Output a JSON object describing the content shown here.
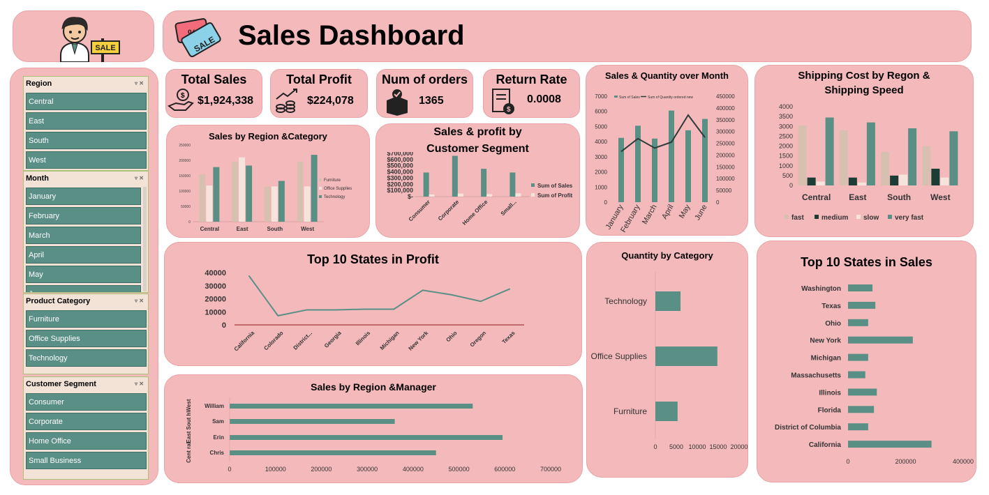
{
  "header": {
    "title": "Sales Dashboard",
    "logo_text": "SALE",
    "tag_text": "SALE"
  },
  "kpis": [
    {
      "title": "Total Sales",
      "value": "$1,924,338",
      "icon": "money-hand-icon"
    },
    {
      "title": "Total Profit",
      "value": "$224,078",
      "icon": "coins-growth-icon"
    },
    {
      "title": "Num of orders",
      "value": "1365",
      "icon": "box-icon"
    },
    {
      "title": "Return Rate",
      "value": "0.0008",
      "icon": "invoice-icon"
    }
  ],
  "slicers": {
    "region": {
      "title": "Region",
      "items": [
        "Central",
        "East",
        "South",
        "West"
      ]
    },
    "month": {
      "title": "Month",
      "items": [
        "January",
        "February",
        "March",
        "April",
        "May",
        "June"
      ]
    },
    "category": {
      "title": "Product Category",
      "items": [
        "Furniture",
        "Office Supplies",
        "Technology"
      ]
    },
    "segment": {
      "title": "Customer Segment",
      "items": [
        "Consumer",
        "Corporate",
        "Home Office",
        "Small Business"
      ]
    }
  },
  "colors": {
    "panel": "#f4b9bb",
    "teal": "#5a8f85",
    "beige": "#d8c0b0",
    "cream": "#f6e3dc",
    "dark": "#1c3d35",
    "line": "#2d3b38"
  },
  "charts": {
    "region_category": {
      "title": "Sales by Region &Category",
      "type": "bar",
      "categories": [
        "Central",
        "East",
        "South",
        "West"
      ],
      "series": [
        {
          "name": "Furniture",
          "values": [
            155000,
            195000,
            115000,
            195000
          ]
        },
        {
          "name": "Office Supplies",
          "values": [
            118000,
            210000,
            115000,
            115000
          ]
        },
        {
          "name": "Technology",
          "values": [
            178000,
            183000,
            133000,
            218000
          ]
        }
      ],
      "yticks": [
        "0",
        "50000",
        "100000",
        "150000",
        "200000",
        "250000"
      ],
      "ylim": [
        0,
        250000
      ]
    },
    "segment": {
      "title": "Sales & profit by Customer Segment",
      "type": "bar",
      "categories": [
        "Consumer",
        "Corporate",
        "Home Office",
        "Small..."
      ],
      "series": [
        {
          "name": "Sum of Sales",
          "values": [
            390000,
            660000,
            450000,
            390000
          ]
        },
        {
          "name": "Sum of Profit",
          "values": [
            35000,
            50000,
            40000,
            55000
          ]
        }
      ],
      "yticks": [
        "$-",
        "$100,000",
        "$200,000",
        "$300,000",
        "$400,000",
        "$500,000",
        "$600,000",
        "$700,000"
      ],
      "ylim": [
        0,
        700000
      ]
    },
    "month": {
      "title": "Sales & Quantity over Month",
      "type": "bar",
      "categories": [
        "January",
        "February",
        "March",
        "April",
        "May",
        "June"
      ],
      "series": [
        {
          "name": "Sum of Sales",
          "values": [
            4250,
            5050,
            4200,
            6050,
            4750,
            5500
          ]
        },
        {
          "name": "Sum of Quantity ordered new",
          "values": [
            215000,
            270000,
            230000,
            255000,
            370000,
            275000
          ]
        }
      ],
      "yticks_left": [
        "0",
        "1000",
        "2000",
        "3000",
        "4000",
        "5000",
        "6000",
        "7000"
      ],
      "yticks_right": [
        "0",
        "50000",
        "100000",
        "150000",
        "200000",
        "250000",
        "300000",
        "350000",
        "400000",
        "450000"
      ],
      "ylim_left": [
        0,
        7000
      ],
      "ylim_right": [
        0,
        450000
      ]
    },
    "shipping": {
      "title": "Shipping Cost by Regon & Shipping  Speed",
      "type": "bar",
      "categories": [
        "Central",
        "East",
        "South",
        "West"
      ],
      "series": [
        {
          "name": "fast",
          "values": [
            3050,
            2800,
            1700,
            2000
          ]
        },
        {
          "name": "medium",
          "values": [
            400,
            400,
            500,
            850
          ]
        },
        {
          "name": "slow",
          "values": [
            200,
            150,
            550,
            400
          ]
        },
        {
          "name": "very fast",
          "values": [
            3450,
            3200,
            2900,
            2750
          ]
        }
      ],
      "yticks": [
        "0",
        "500",
        "1000",
        "1500",
        "2000",
        "2500",
        "3000",
        "3500",
        "4000"
      ],
      "ylim": [
        0,
        4000
      ]
    },
    "top_profit": {
      "title": "Top 10 States in Profit",
      "type": "line",
      "categories": [
        "California",
        "Colorado",
        "District...",
        "Georgia",
        "Illinois",
        "Michigan",
        "New York",
        "Ohio",
        "Oregon",
        "Texas"
      ],
      "values": [
        37500,
        7000,
        11500,
        11500,
        12000,
        12000,
        26500,
        23000,
        18000,
        27500
      ],
      "yticks": [
        "0",
        "10000",
        "20000",
        "30000",
        "40000"
      ],
      "ylim": [
        0,
        40000
      ]
    },
    "region_manager": {
      "title": "Sales by Region &Manager",
      "type": "bar",
      "rows": [
        {
          "region": "West",
          "manager": "William",
          "value": 530000
        },
        {
          "region": "South",
          "manager": "Sam",
          "value": 360000
        },
        {
          "region": "East",
          "manager": "Erin",
          "value": 595000
        },
        {
          "region": "Central",
          "manager": "Chris",
          "value": 450000
        }
      ],
      "region_labels": [
        "West",
        "Sout h",
        "East",
        "Cent ral"
      ],
      "xticks": [
        "0",
        "100000",
        "200000",
        "300000",
        "400000",
        "500000",
        "600000",
        "700000"
      ],
      "xlim": [
        0,
        700000
      ]
    },
    "quantity_category": {
      "title": "Quantity by Category",
      "type": "bar",
      "categories": [
        "Technology",
        "Office Supplies",
        "Furniture"
      ],
      "values": [
        6000,
        14800,
        5300
      ],
      "xticks": [
        "0",
        "5000",
        "10000",
        "15000",
        "20000"
      ],
      "xlim": [
        0,
        20000
      ]
    },
    "top_sales": {
      "title": "Top 10 States in Sales",
      "type": "bar",
      "categories": [
        "Washington",
        "Texas",
        "Ohio",
        "New York",
        "Michigan",
        "Massachusetts",
        "Illinois",
        "Florida",
        "District of Columbia",
        "California"
      ],
      "values": [
        85000,
        95000,
        70000,
        225000,
        70000,
        60000,
        100000,
        90000,
        70000,
        290000
      ],
      "xticks": [
        "0",
        "200000",
        "400000"
      ],
      "xlim": [
        0,
        400000
      ]
    }
  }
}
